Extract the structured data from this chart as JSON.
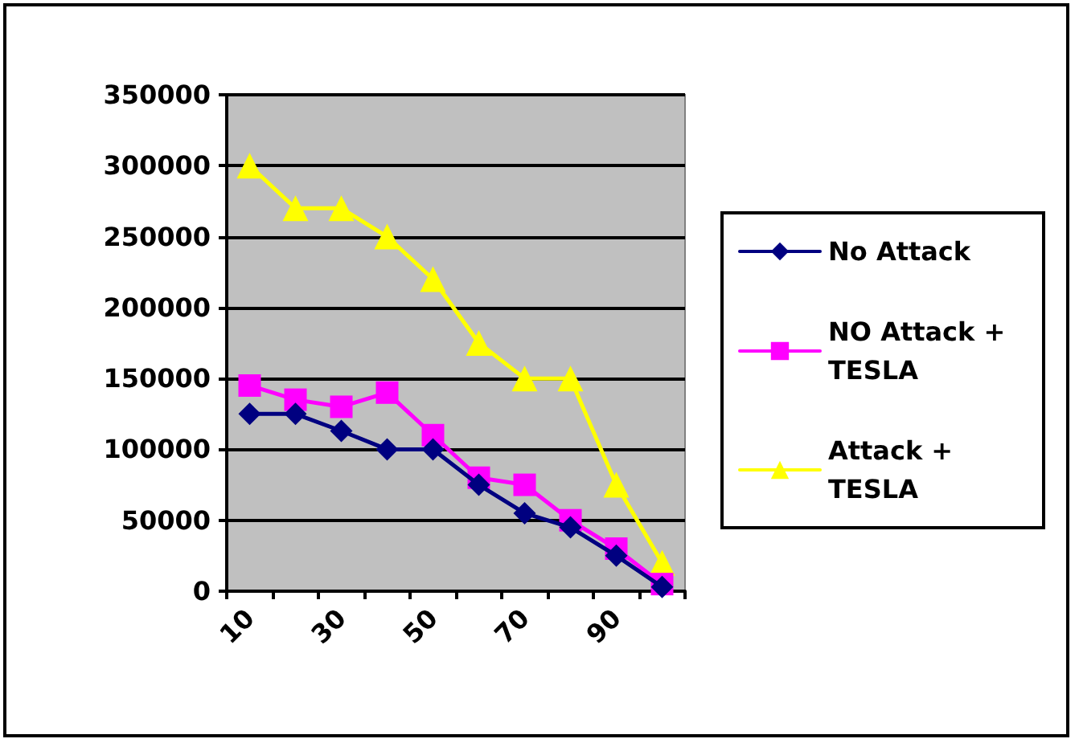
{
  "chart_data": {
    "type": "line",
    "categories": [
      "10",
      null,
      "30",
      null,
      "50",
      null,
      "70",
      null,
      "90",
      null
    ],
    "series": [
      {
        "name": "No Attack",
        "color": "#000080",
        "marker": "diamond",
        "values": [
          125000,
          125000,
          113000,
          100000,
          100000,
          75000,
          55000,
          45000,
          25000,
          3000
        ]
      },
      {
        "name": "NO Attack + TESLA",
        "color": "#ff00ff",
        "marker": "square",
        "values": [
          145000,
          135000,
          130000,
          140000,
          110000,
          80000,
          75000,
          50000,
          30000,
          5000
        ]
      },
      {
        "name": "Attack + TESLA",
        "color": "#ffff00",
        "marker": "triangle",
        "values": [
          300000,
          270000,
          270000,
          250000,
          220000,
          175000,
          150000,
          150000,
          75000,
          20000
        ]
      }
    ],
    "ylim": [
      0,
      350000
    ],
    "yticks": [
      0,
      50000,
      100000,
      150000,
      200000,
      250000,
      300000,
      350000
    ],
    "grid": "y",
    "legend": "right",
    "line_style": "solid"
  }
}
